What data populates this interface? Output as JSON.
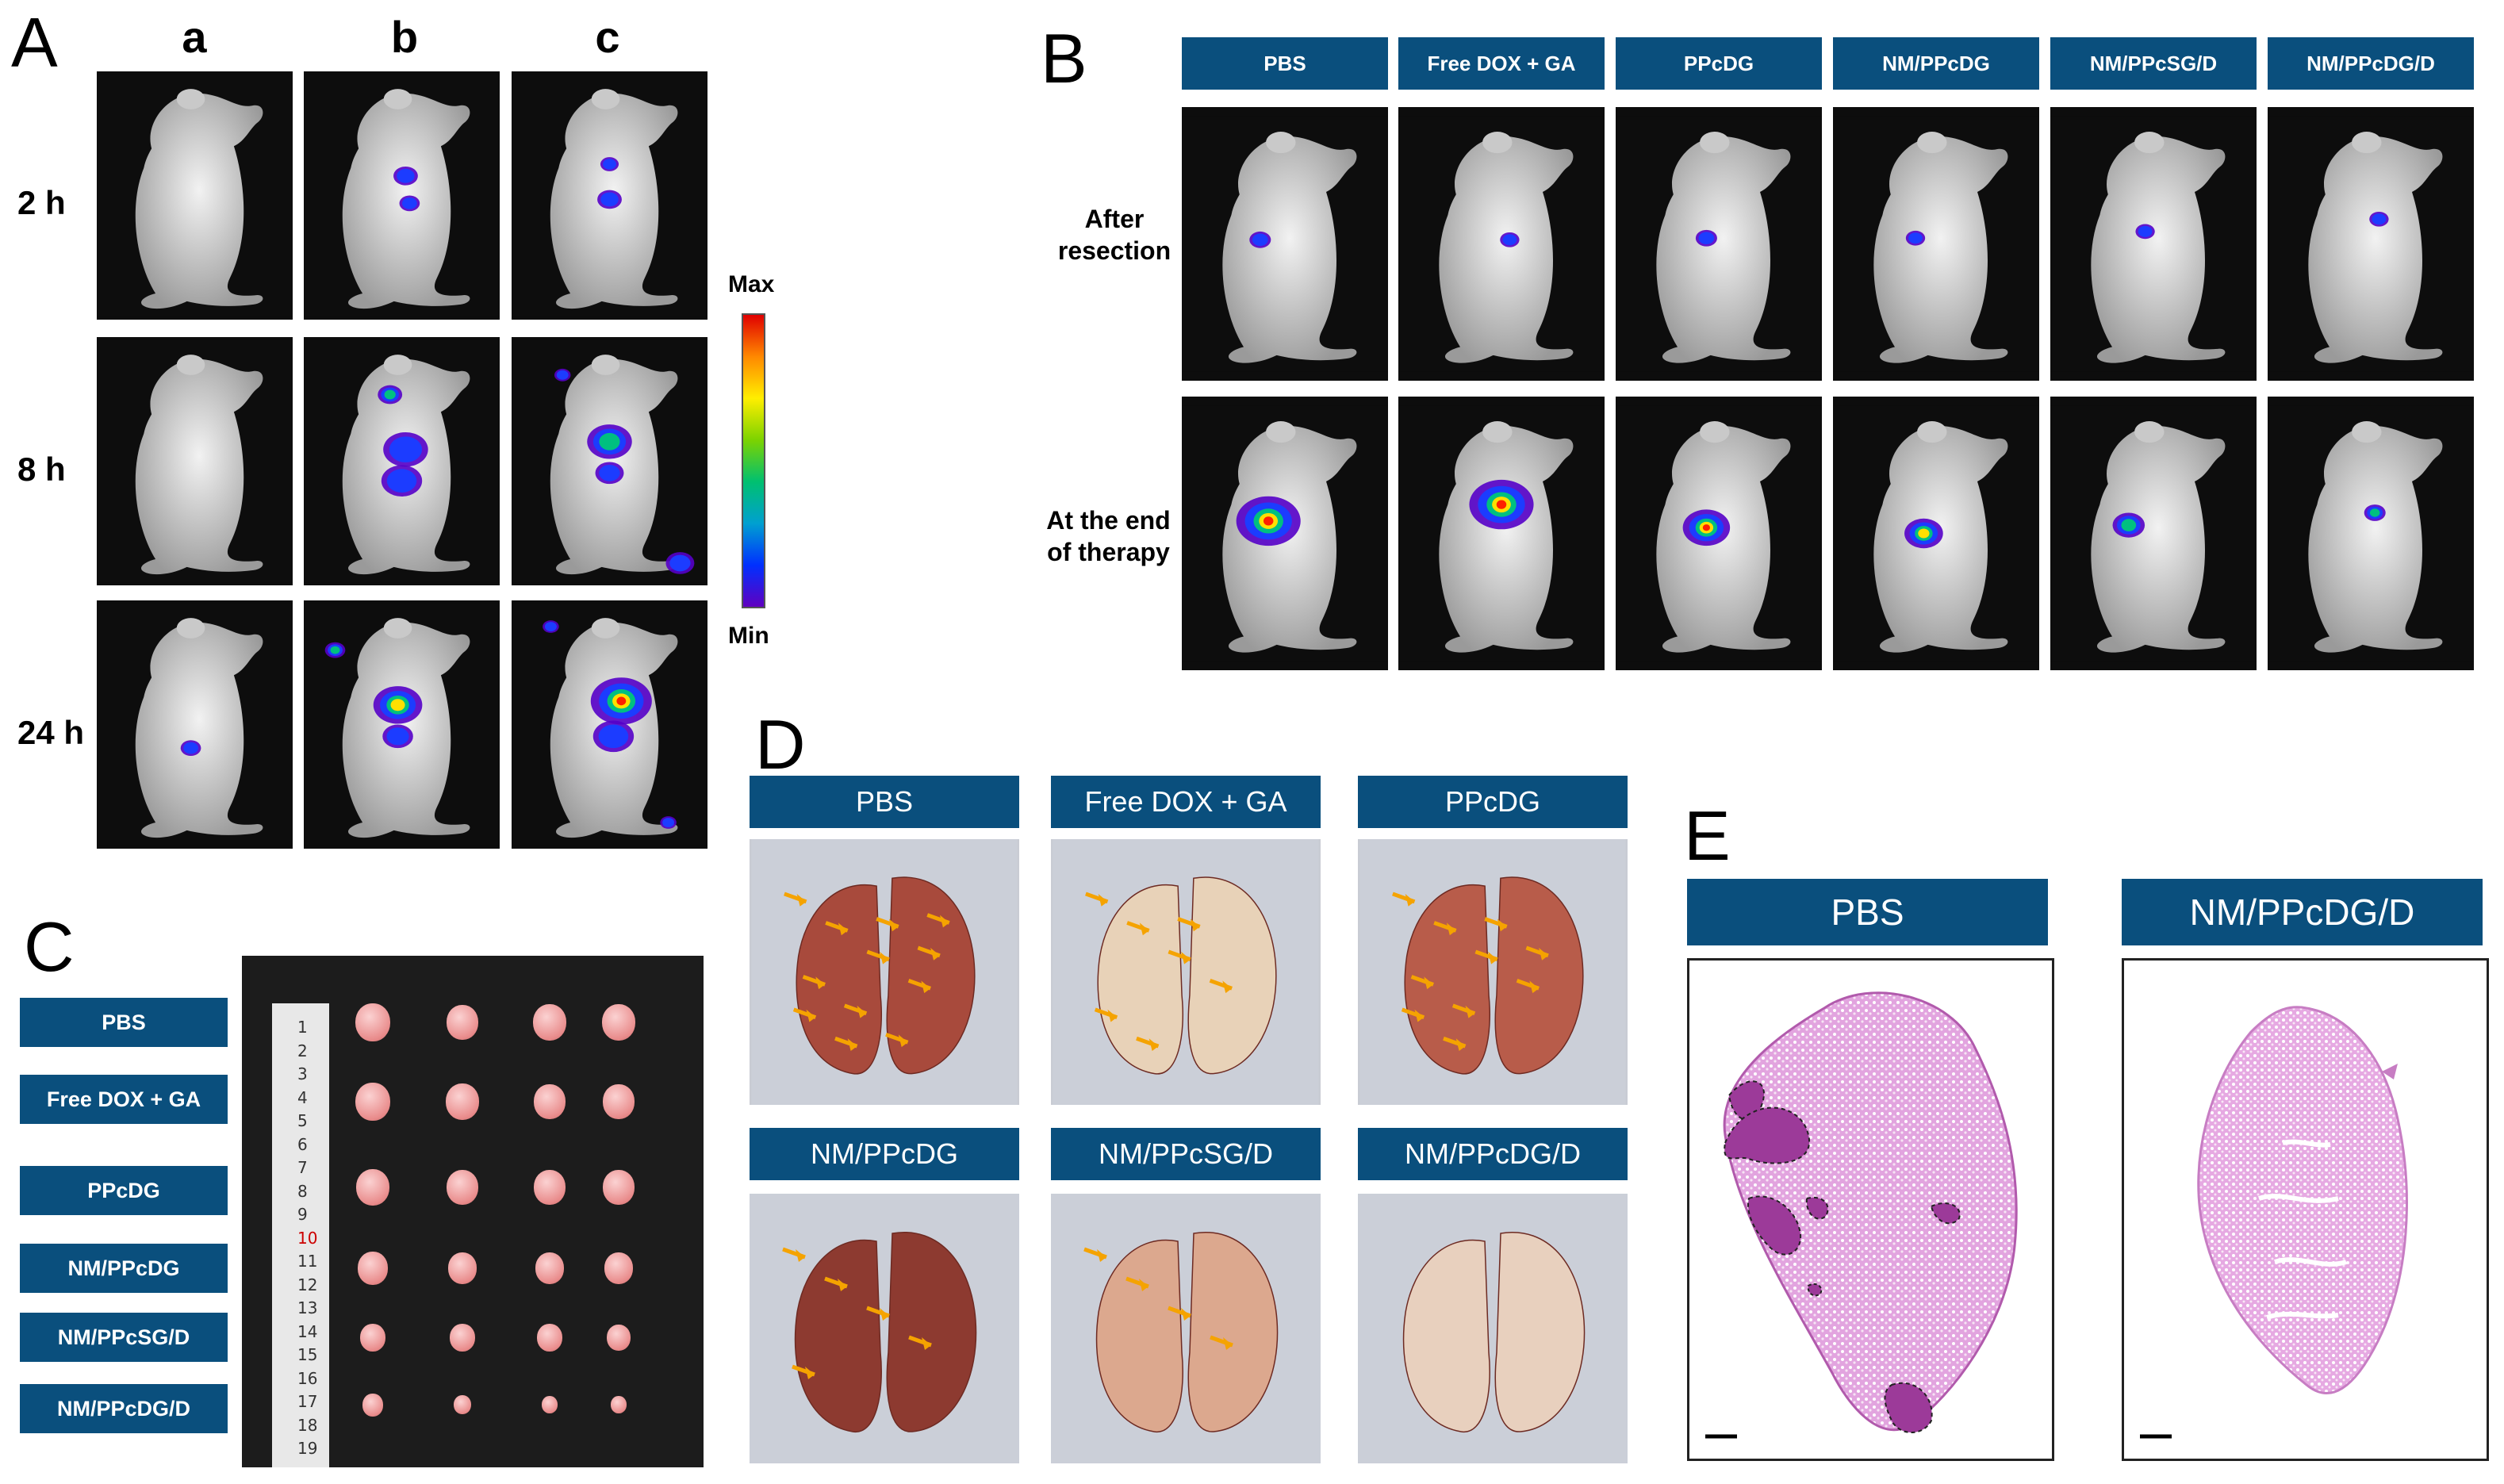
{
  "panelA": {
    "letter": "A",
    "columns": [
      "a",
      "b",
      "c"
    ],
    "rows": [
      "2 h",
      "8 h",
      "24 h"
    ],
    "colorbar": {
      "max_label": "Max",
      "min_label": "Min"
    }
  },
  "panelB": {
    "letter": "B",
    "groups": [
      "PBS",
      "Free DOX + GA",
      "PPcDG",
      "NM/PPcDG",
      "NM/PPcSG/D",
      "NM/PPcDG/D"
    ],
    "row1_line1": "After",
    "row1_line2": "resection",
    "row2_line1": "At the end",
    "row2_line2": "of therapy"
  },
  "panelC": {
    "letter": "C",
    "groups": [
      "PBS",
      "Free DOX + GA",
      "PPcDG",
      "NM/PPcDG",
      "NM/PPcSG/D",
      "NM/PPcDG/D"
    ],
    "ruler_numbers": [
      "1",
      "2",
      "3",
      "4",
      "5",
      "6",
      "7",
      "8",
      "9",
      "10",
      "11",
      "12",
      "13",
      "14",
      "15",
      "16",
      "17",
      "18",
      "19"
    ]
  },
  "panelD": {
    "letter": "D",
    "groups": [
      "PBS",
      "Free DOX + GA",
      "PPcDG",
      "NM/PPcDG",
      "NM/PPcSG/D",
      "NM/PPcDG/D"
    ]
  },
  "panelE": {
    "letter": "E",
    "groups": [
      "PBS",
      "NM/PPcDG/D"
    ]
  },
  "colors": {
    "header_blue": "#0a4f7d",
    "tile_bg": "#0d0d0d",
    "mouse": "#d8d8d8",
    "lung_photo_bg": "#c9ccd4",
    "arrow": "#f5a300",
    "histo_pink": "#d58bd0"
  }
}
